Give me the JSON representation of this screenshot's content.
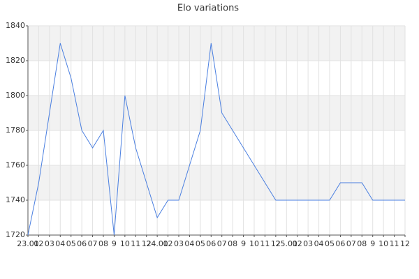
{
  "chart_data": {
    "type": "line",
    "title": "Elo variations",
    "categories": [
      "23.01",
      "02",
      "03",
      "04",
      "05",
      "06",
      "07",
      "08",
      "9",
      "10",
      "11",
      "12",
      "24.01",
      "02",
      "03",
      "04",
      "05",
      "06",
      "07",
      "08",
      "9",
      "10",
      "11",
      "12",
      "25.01",
      "02",
      "03",
      "04",
      "05",
      "06",
      "07",
      "08",
      "9",
      "10",
      "11",
      "12"
    ],
    "values": [
      1720,
      1750,
      1790,
      1830,
      1810,
      1780,
      1770,
      1780,
      1720,
      1800,
      1770,
      1750,
      1730,
      1740,
      1740,
      1760,
      1780,
      1830,
      1790,
      1780,
      1770,
      1760,
      1750,
      1740,
      1740,
      1740,
      1740,
      1740,
      1740,
      1750,
      1750,
      1750,
      1740,
      1740,
      1740,
      1740
    ],
    "color": "#4a7fe0",
    "ylim": [
      1720,
      1840
    ],
    "yticks": [
      1720,
      1740,
      1760,
      1780,
      1800,
      1820,
      1840
    ],
    "grid": true
  }
}
